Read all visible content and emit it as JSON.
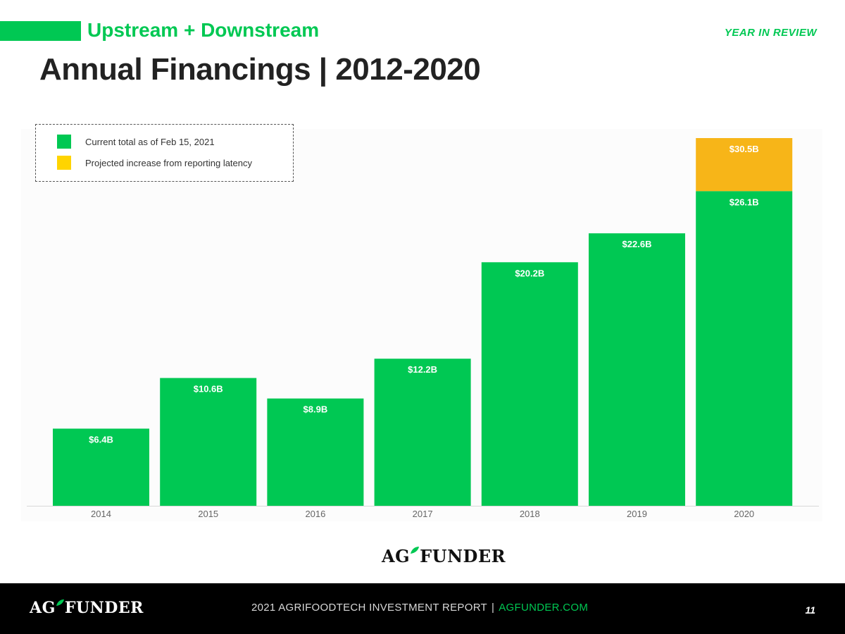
{
  "header": {
    "subtitle": "Upstream + Downstream",
    "section_tag": "YEAR IN REVIEW",
    "title": "Annual Financings | 2012-2020"
  },
  "legend": {
    "current": "Current total as of Feb 15, 2021",
    "projected": "Projected increase from reporting latency"
  },
  "colors": {
    "accent": "#00c853",
    "current": "#00c853",
    "projected": "#f7b518",
    "legend_projected": "#ffd400"
  },
  "chart_data": {
    "type": "bar",
    "stacked": true,
    "categories": [
      "2014",
      "2015",
      "2016",
      "2017",
      "2018",
      "2019",
      "2020"
    ],
    "series": [
      {
        "name": "Current total as of Feb 15, 2021",
        "values": [
          6.4,
          10.6,
          8.9,
          12.2,
          20.2,
          22.6,
          26.1
        ],
        "labels": [
          "$6.4B",
          "$10.6B",
          "$8.9B",
          "$12.2B",
          "$20.2B",
          "$22.6B",
          "$26.1B"
        ]
      },
      {
        "name": "Projected increase from reporting latency",
        "values": [
          0,
          0,
          0,
          0,
          0,
          0,
          4.4
        ],
        "labels": [
          "",
          "",
          "",
          "",
          "",
          "",
          "$30.5B"
        ]
      }
    ],
    "title": "Annual Financings | 2012-2020",
    "xlabel": "",
    "ylabel": "",
    "ylim": [
      0,
      30.5
    ],
    "grid": false,
    "legend_position": "top-left"
  },
  "logo": {
    "text_a": "A",
    "text_g": "G",
    "text_rest": "FUNDER"
  },
  "footer": {
    "report": "2021 AGRIFOODTECH INVESTMENT REPORT",
    "separator": "|",
    "site": "AGFUNDER.COM",
    "page": "11"
  }
}
